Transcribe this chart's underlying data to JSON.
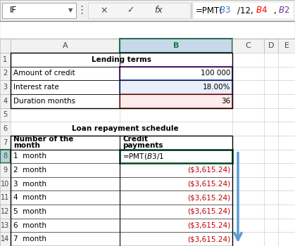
{
  "formula_parts": [
    {
      "text": "=PMT(",
      "color": "#000000"
    },
    {
      "text": "$B$3",
      "color": "#4472C4"
    },
    {
      "text": "/12,",
      "color": "#000000"
    },
    {
      "text": "$B$4",
      "color": "#FF0000"
    },
    {
      "text": ",",
      "color": "#000000"
    },
    {
      "text": "$B$2",
      "color": "#7030A0"
    },
    {
      "text": ")",
      "color": "#000000"
    }
  ],
  "namebox": "IF",
  "col_headers": [
    "",
    "A",
    "B",
    "C",
    "D",
    "E"
  ],
  "row_count": 14,
  "cells": {
    "r1_A": {
      "text": "Lending terms",
      "bold": true,
      "align": "center",
      "span": 2
    },
    "r2_A": {
      "text": "Amount of credit",
      "bold": false,
      "align": "left"
    },
    "r2_B": {
      "text": "100 000",
      "bold": false,
      "align": "right",
      "border_color": "#7030A0",
      "border_lw": 1.5
    },
    "r3_A": {
      "text": "Interest rate",
      "bold": false,
      "align": "left"
    },
    "r3_B": {
      "text": "18.00%",
      "bold": false,
      "align": "right",
      "bg": "#EAF0FB",
      "border_color": "#4472C4",
      "border_lw": 1.5
    },
    "r4_A": {
      "text": "Duration months",
      "bold": false,
      "align": "left"
    },
    "r4_B": {
      "text": "36",
      "bold": false,
      "align": "right",
      "bg": "#FDECEA",
      "border_color": "#E06060",
      "border_lw": 1.5
    },
    "r6_A": {
      "text": "   Loan repayment schedule",
      "bold": true,
      "align": "left",
      "span": 2
    },
    "r7_A": {
      "text": "Number of the\nmonth",
      "bold": true,
      "align": "left"
    },
    "r7_B": {
      "text": "Credit\npayments",
      "bold": true,
      "align": "left"
    },
    "r8_A": {
      "text": "1  month",
      "bold": false,
      "align": "left",
      "row_highlight": true
    },
    "r8_B": {
      "text": "=PMT($B$3/1",
      "bold": false,
      "align": "left",
      "border_color": "#217346",
      "border_lw": 2.0
    },
    "r9_A": {
      "text": "2  month",
      "bold": false,
      "align": "left"
    },
    "r9_B": {
      "text": "($3,615.24)",
      "bold": false,
      "align": "right",
      "color": "#C00000"
    },
    "r10_A": {
      "text": "3  month",
      "bold": false,
      "align": "left"
    },
    "r10_B": {
      "text": "($3,615.24)",
      "bold": false,
      "align": "right",
      "color": "#C00000"
    },
    "r11_A": {
      "text": "4  month",
      "bold": false,
      "align": "left"
    },
    "r11_B": {
      "text": "($3,615.24)",
      "bold": false,
      "align": "right",
      "color": "#C00000"
    },
    "r12_A": {
      "text": "5  month",
      "bold": false,
      "align": "left"
    },
    "r12_B": {
      "text": "($3,615.24)",
      "bold": false,
      "align": "right",
      "color": "#C00000"
    },
    "r13_A": {
      "text": "6  month",
      "bold": false,
      "align": "left"
    },
    "r13_B": {
      "text": "($3,615.24)",
      "bold": false,
      "align": "right",
      "color": "#C00000"
    },
    "r14_A": {
      "text": "7  month",
      "bold": false,
      "align": "left"
    },
    "r14_B": {
      "text": "($3,615.24)",
      "bold": false,
      "align": "right",
      "color": "#C00000"
    }
  },
  "table_border_rows": [
    7,
    14
  ],
  "lending_border_rows": [
    1,
    4
  ],
  "bg": "#FFFFFF",
  "grid": "#D0D0D0",
  "hdr_bg": "#F2F2F2",
  "sel_col_bg": "#C8D8EA",
  "row_lbl_bg": "#F2F2F2",
  "row8_lbl_bg": "#B8CCD8",
  "arrow_color": "#5B9BD5",
  "top_bar_bg": "#F0F0F0",
  "formula_box_bg": "#FFFFFF"
}
